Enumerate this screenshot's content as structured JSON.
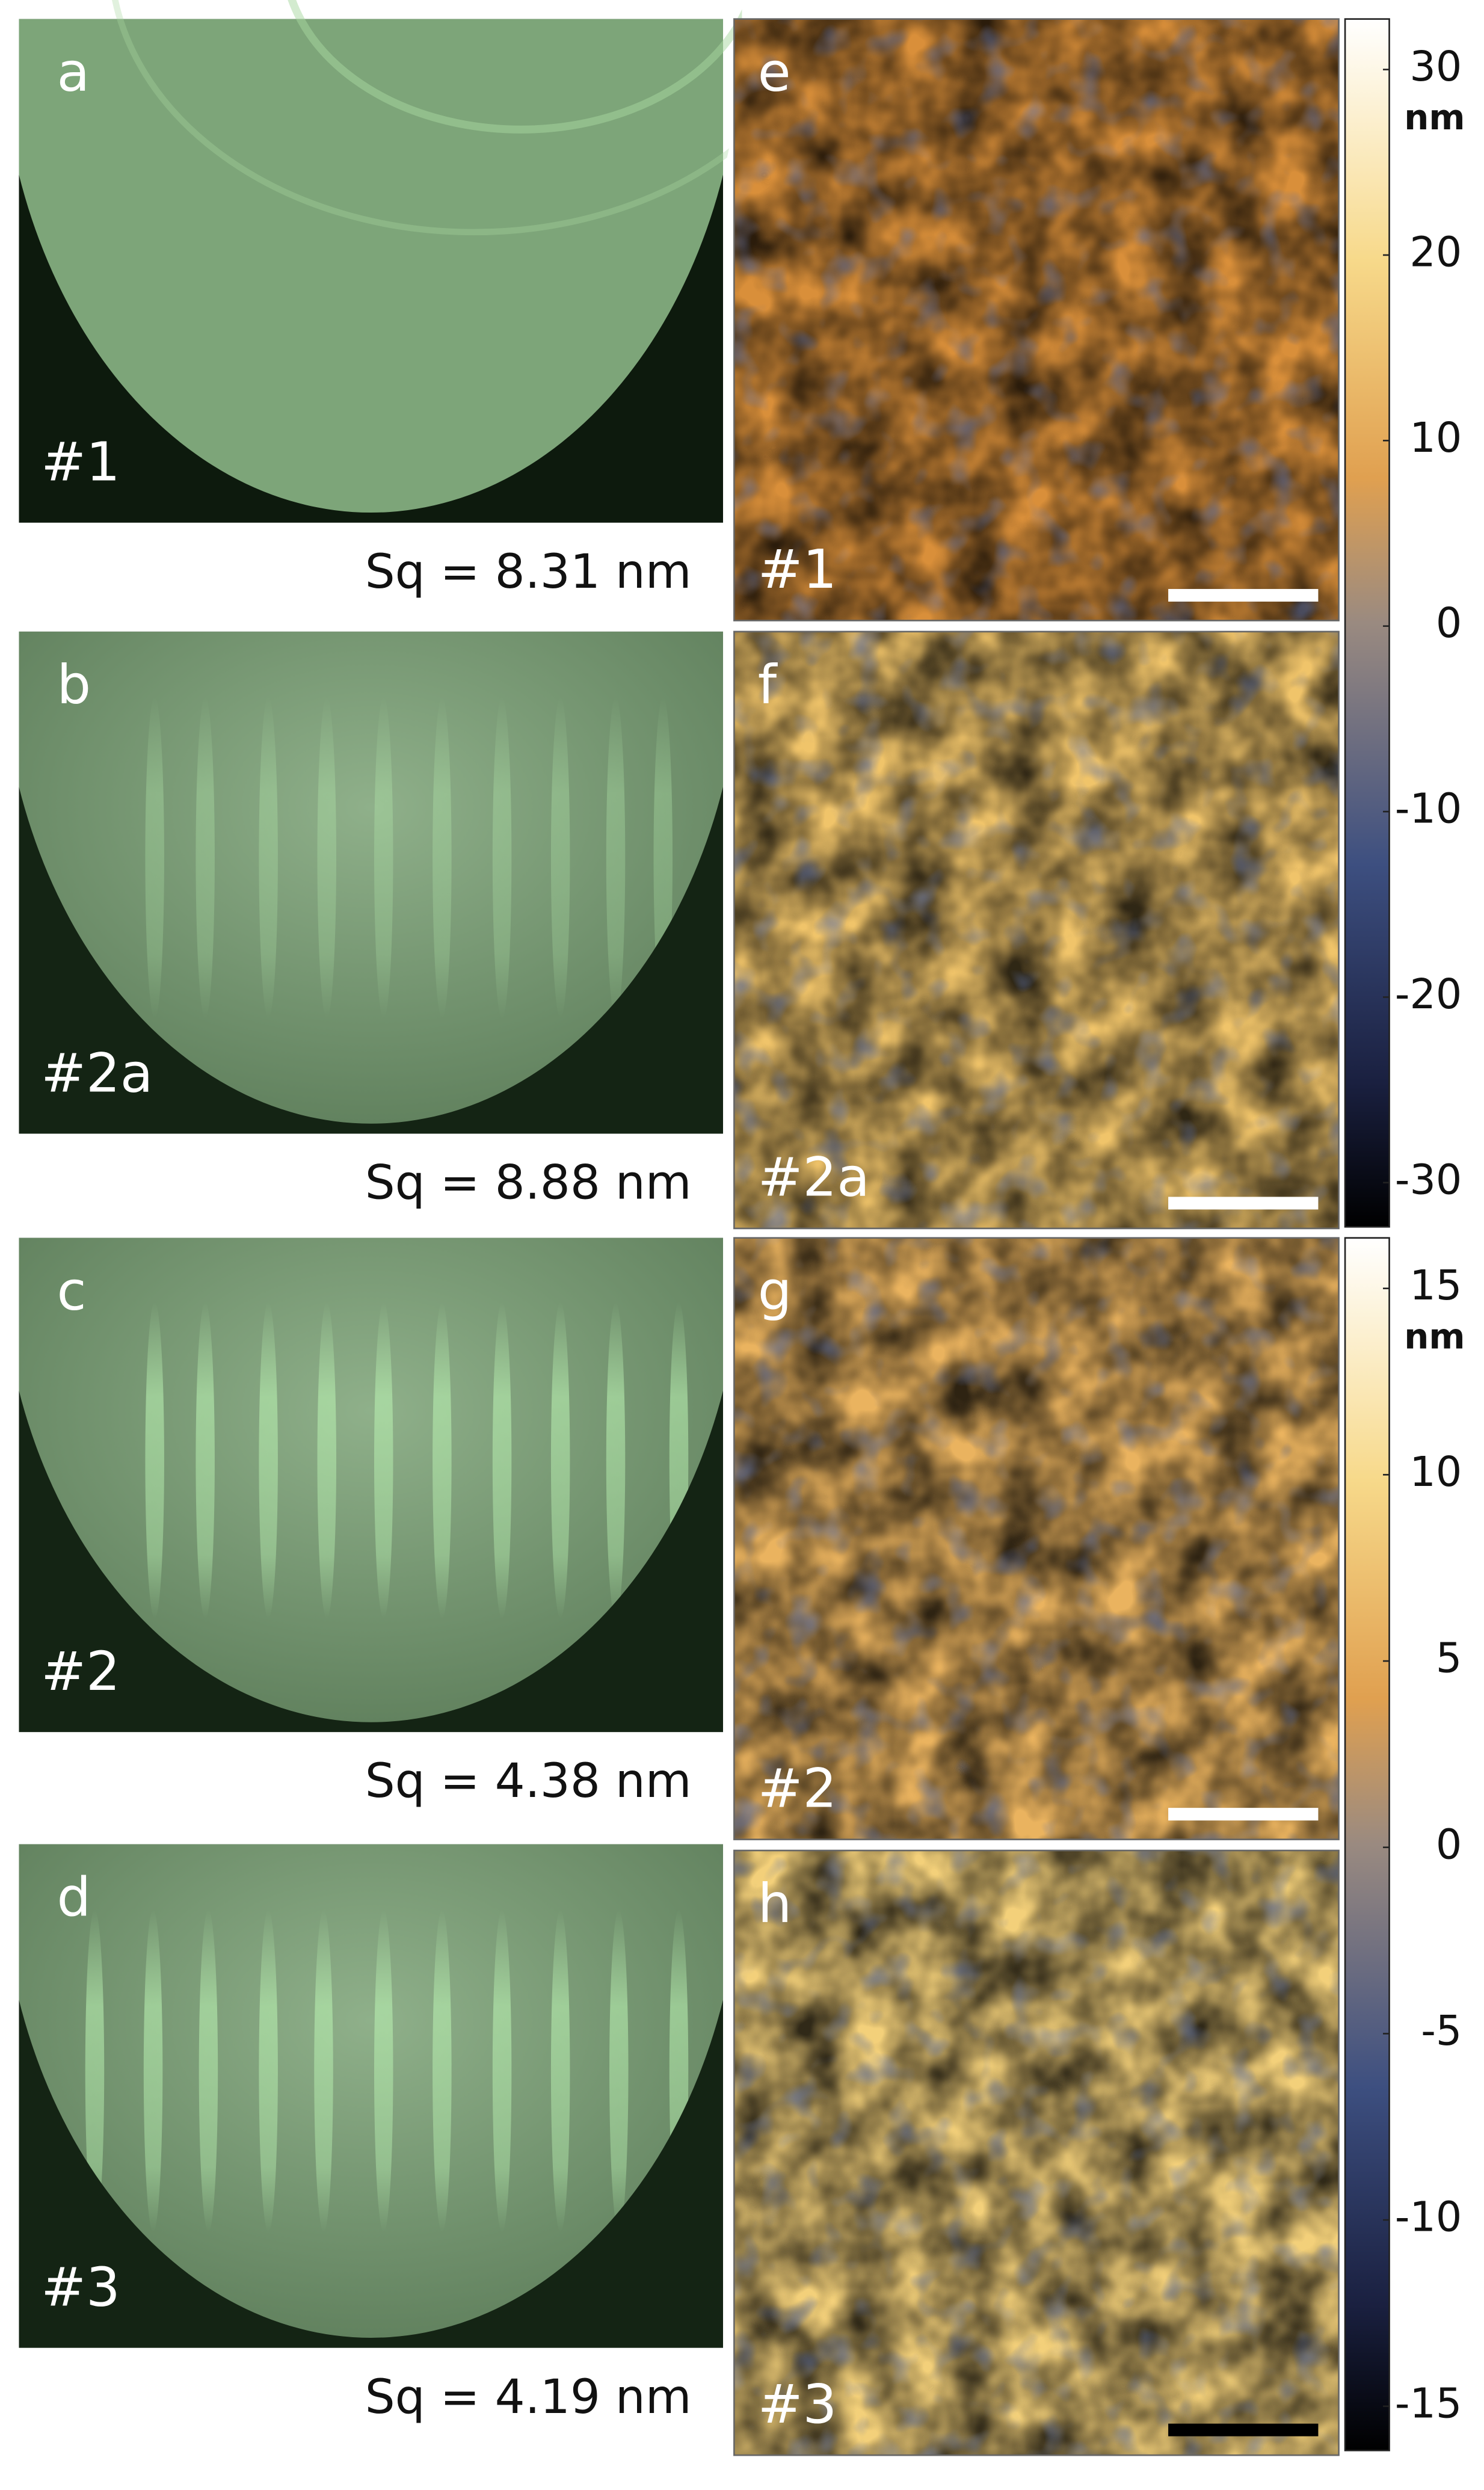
{
  "panels_left": [
    {
      "letter": "a",
      "sample": "#1",
      "roughness": "Sq = 8.31 nm"
    },
    {
      "letter": "b",
      "sample": "#2a",
      "roughness": "Sq = 8.88 nm"
    },
    {
      "letter": "c",
      "sample": "#2",
      "roughness": "Sq = 4.38 nm"
    },
    {
      "letter": "d",
      "sample": "#3",
      "roughness": "Sq = 4.19 nm"
    }
  ],
  "panels_right": [
    {
      "letter": "e",
      "sample": "#1"
    },
    {
      "letter": "f",
      "sample": "#2a"
    },
    {
      "letter": "g",
      "sample": "#2"
    },
    {
      "letter": "h",
      "sample": "#3"
    }
  ],
  "colorbars": [
    {
      "unit": "nm",
      "ticks": [
        30,
        20,
        10,
        0,
        -10,
        -20,
        -30
      ]
    },
    {
      "unit": "nm",
      "ticks": [
        15,
        10,
        5,
        0,
        -5,
        -10,
        -15
      ]
    }
  ]
}
